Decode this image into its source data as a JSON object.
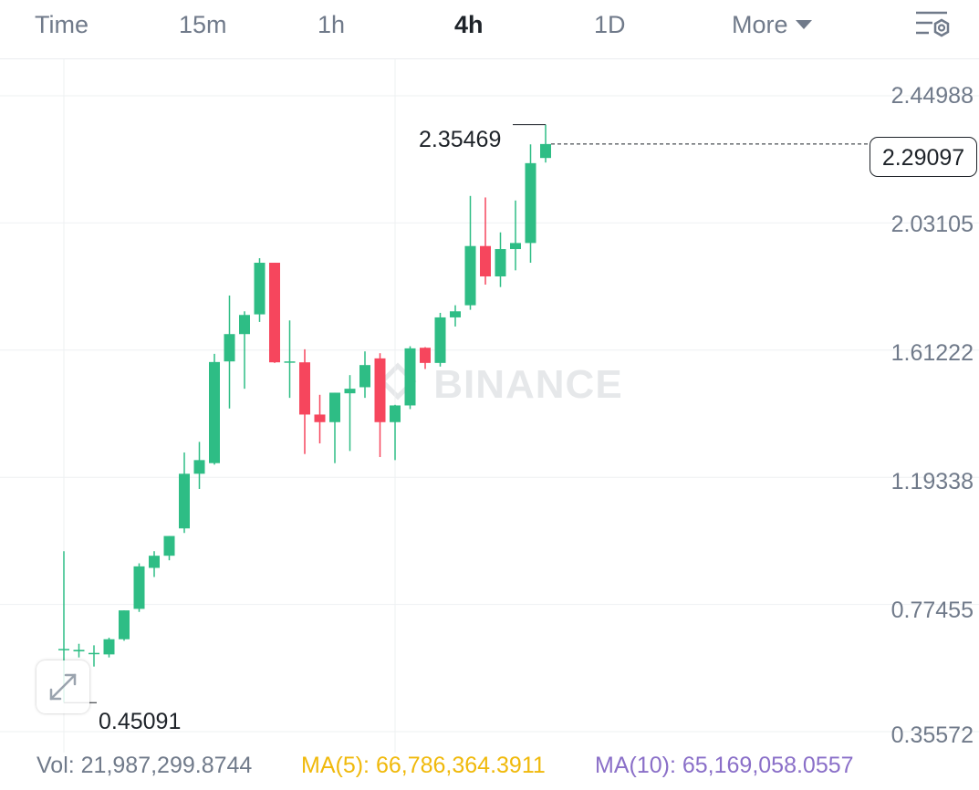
{
  "tabs": [
    {
      "label": "Time",
      "active": false
    },
    {
      "label": "15m",
      "active": false
    },
    {
      "label": "1h",
      "active": false
    },
    {
      "label": "4h",
      "active": true
    },
    {
      "label": "1D",
      "active": false
    },
    {
      "label": "More",
      "active": false
    }
  ],
  "watermark": "BINANCE",
  "price_axis": [
    "2.44988",
    "2.03105",
    "1.61222",
    "1.19338",
    "0.77455",
    "0.35572"
  ],
  "current_price": "2.29097",
  "high_label": "2.35469",
  "low_label": "0.45091",
  "volume": {
    "vol_label": "Vol: 21,987,299.8744",
    "ma5_label": "MA(5): 66,786,364.3911",
    "ma10_label": "MA(10): 65,169,058.0557"
  },
  "colors": {
    "up": "#2ebd85",
    "down": "#f6465d",
    "ma5": "#f0b90b",
    "ma10": "#8a6fc8",
    "text_muted": "#707a8a"
  },
  "chart_data": {
    "type": "candlestick",
    "y_range": [
      0.35572,
      2.44988
    ],
    "candles": [
      {
        "o": 0.628,
        "h": 0.95,
        "l": 0.451,
        "c": 0.628
      },
      {
        "o": 0.62,
        "h": 0.645,
        "l": 0.6,
        "c": 0.625
      },
      {
        "o": 0.615,
        "h": 0.64,
        "l": 0.57,
        "c": 0.615
      },
      {
        "o": 0.61,
        "h": 0.665,
        "l": 0.6,
        "c": 0.66
      },
      {
        "o": 0.66,
        "h": 0.755,
        "l": 0.655,
        "c": 0.755
      },
      {
        "o": 0.76,
        "h": 0.91,
        "l": 0.75,
        "c": 0.9
      },
      {
        "o": 0.895,
        "h": 0.95,
        "l": 0.865,
        "c": 0.935
      },
      {
        "o": 0.935,
        "h": 1.0,
        "l": 0.92,
        "c": 1.0
      },
      {
        "o": 1.025,
        "h": 1.275,
        "l": 1.01,
        "c": 1.205
      },
      {
        "o": 1.205,
        "h": 1.31,
        "l": 1.155,
        "c": 1.25
      },
      {
        "o": 1.24,
        "h": 1.6,
        "l": 1.235,
        "c": 1.573
      },
      {
        "o": 1.575,
        "h": 1.792,
        "l": 1.42,
        "c": 1.665
      },
      {
        "o": 1.665,
        "h": 1.74,
        "l": 1.485,
        "c": 1.728
      },
      {
        "o": 1.73,
        "h": 1.915,
        "l": 1.705,
        "c": 1.9
      },
      {
        "o": 1.9,
        "h": 1.9,
        "l": 1.57,
        "c": 1.572
      },
      {
        "o": 1.575,
        "h": 1.71,
        "l": 1.455,
        "c": 1.575
      },
      {
        "o": 1.572,
        "h": 1.615,
        "l": 1.27,
        "c": 1.4
      },
      {
        "o": 1.4,
        "h": 1.465,
        "l": 1.305,
        "c": 1.375
      },
      {
        "o": 1.375,
        "h": 1.472,
        "l": 1.24,
        "c": 1.472
      },
      {
        "o": 1.47,
        "h": 1.53,
        "l": 1.28,
        "c": 1.485
      },
      {
        "o": 1.49,
        "h": 1.608,
        "l": 1.455,
        "c": 1.563
      },
      {
        "o": 1.585,
        "h": 1.602,
        "l": 1.26,
        "c": 1.375
      },
      {
        "o": 1.375,
        "h": 1.432,
        "l": 1.25,
        "c": 1.43
      },
      {
        "o": 1.43,
        "h": 1.625,
        "l": 1.418,
        "c": 1.618
      },
      {
        "o": 1.62,
        "h": 1.622,
        "l": 1.55,
        "c": 1.57
      },
      {
        "o": 1.57,
        "h": 1.735,
        "l": 1.558,
        "c": 1.72
      },
      {
        "o": 1.72,
        "h": 1.76,
        "l": 1.69,
        "c": 1.74
      },
      {
        "o": 1.76,
        "h": 2.12,
        "l": 1.745,
        "c": 1.955
      },
      {
        "o": 1.955,
        "h": 2.115,
        "l": 1.828,
        "c": 1.855
      },
      {
        "o": 1.855,
        "h": 2.0,
        "l": 1.82,
        "c": 1.945
      },
      {
        "o": 1.945,
        "h": 2.105,
        "l": 1.875,
        "c": 1.965
      },
      {
        "o": 1.965,
        "h": 2.29,
        "l": 1.9,
        "c": 2.228
      },
      {
        "o": 2.245,
        "h": 2.355,
        "l": 2.23,
        "c": 2.291
      }
    ]
  }
}
